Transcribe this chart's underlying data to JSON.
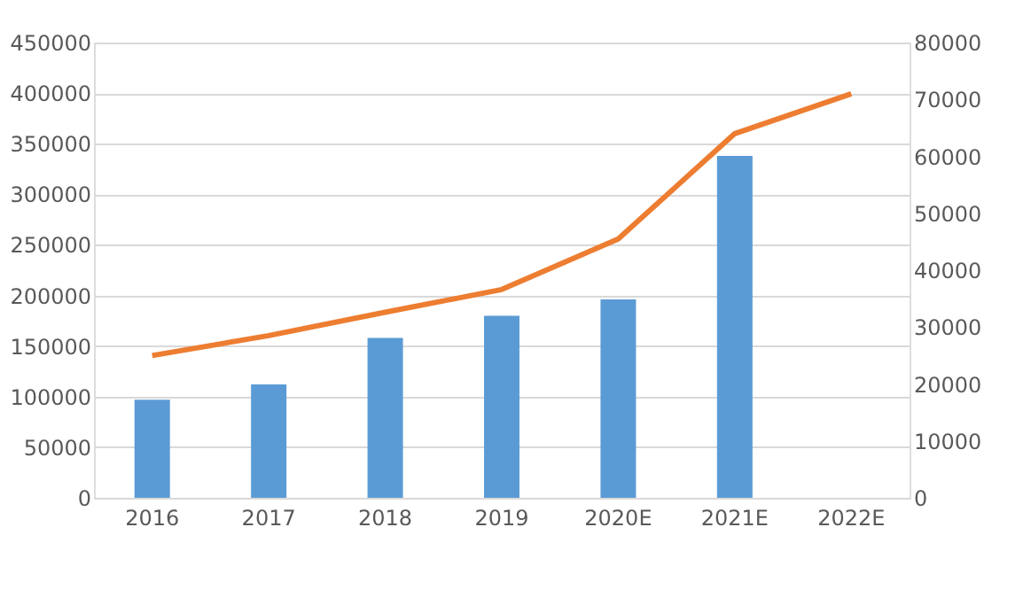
{
  "chart_data": {
    "type": "bar",
    "categories": [
      "2016",
      "2017",
      "2018",
      "2019",
      "2020E",
      "2021E",
      "2022E"
    ],
    "series": [
      {
        "color": "#5b9bd5",
        "values": [
          97000,
          112000,
          158000,
          180000,
          196000,
          338000,
          null
        ]
      },
      {
        "type": "line",
        "axis": "y2",
        "color": "#ed7d31",
        "values": [
          25000,
          28500,
          32600,
          36600,
          45500,
          64000,
          71000
        ]
      }
    ],
    "ylim": [
      0,
      450000
    ],
    "yticks": [
      0,
      50000,
      100000,
      150000,
      200000,
      250000,
      300000,
      350000,
      400000,
      450000
    ],
    "y2lim": [
      0,
      80000
    ],
    "y2ticks": [
      0,
      10000,
      20000,
      30000,
      40000,
      50000,
      60000,
      70000,
      80000
    ],
    "grid": "y",
    "marker": "none",
    "line_style": "solid"
  }
}
